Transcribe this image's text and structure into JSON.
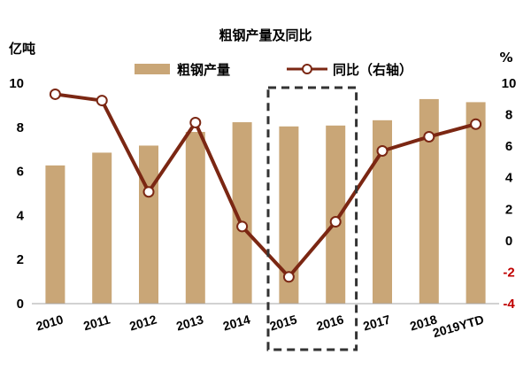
{
  "chart_data": {
    "type": "bar",
    "title": "粗钢产量及同比",
    "left_unit": "亿吨",
    "right_unit": "%",
    "categories": [
      "2010",
      "2011",
      "2012",
      "2013",
      "2014",
      "2015",
      "2016",
      "2017",
      "2018",
      "2019YTD"
    ],
    "series": [
      {
        "name": "粗钢产量",
        "type": "bar",
        "axis": "left",
        "color": "#c9a677",
        "values": [
          6.27,
          6.85,
          7.17,
          7.79,
          8.23,
          8.04,
          8.08,
          8.32,
          9.28,
          9.14
        ]
      },
      {
        "name": "同比（右轴）",
        "type": "line",
        "axis": "right",
        "color": "#7b2713",
        "values": [
          9.3,
          8.9,
          3.1,
          7.5,
          0.9,
          -2.3,
          1.2,
          5.7,
          6.6,
          7.4
        ]
      }
    ],
    "ylim_left": [
      0,
      10
    ],
    "yticks_left": [
      "0",
      "2",
      "4",
      "6",
      "8",
      "10"
    ],
    "ylim_right": [
      -4,
      10
    ],
    "yticks_right": [
      "-4",
      "-2",
      "0",
      "2",
      "4",
      "6",
      "8",
      "10"
    ],
    "negative_tick_color": "#c00000",
    "highlight_categories": [
      "2015",
      "2016"
    ],
    "grid": false,
    "legend_position": "top"
  }
}
